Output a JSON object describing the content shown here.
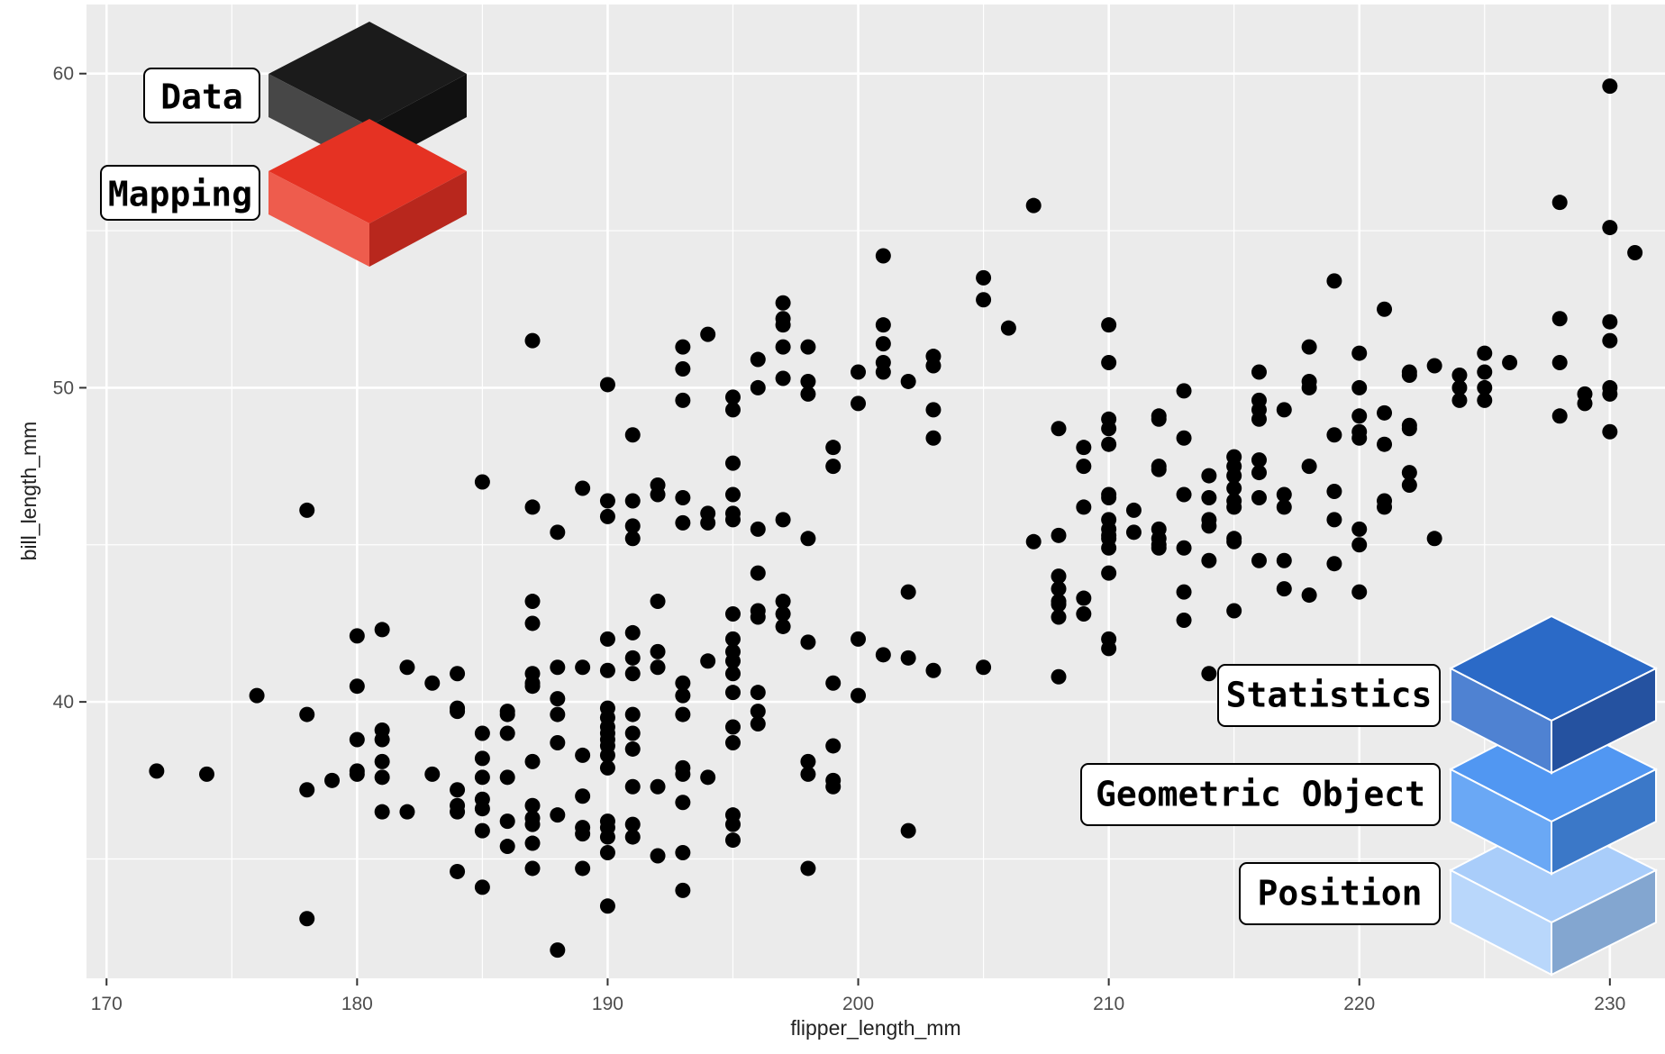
{
  "chart_data": {
    "type": "scatter",
    "xlabel": "flipper_length_mm",
    "ylabel": "bill_length_mm",
    "xlim": [
      169.2,
      232.2
    ],
    "ylim": [
      31.2,
      62.2
    ],
    "x_ticks": [
      170,
      180,
      190,
      200,
      210,
      220,
      230
    ],
    "y_ticks": [
      40,
      50,
      60
    ],
    "grid": true,
    "panel_background": "#ebebeb",
    "point_color": "#000000",
    "points": [
      [
        172,
        37.8
      ],
      [
        174,
        37.7
      ],
      [
        176,
        40.2
      ],
      [
        178,
        46.1
      ],
      [
        178,
        39.6
      ],
      [
        178,
        37.2
      ],
      [
        178,
        33.1
      ],
      [
        179,
        37.5
      ],
      [
        180,
        42.1
      ],
      [
        180,
        40.5
      ],
      [
        180,
        38.8
      ],
      [
        180,
        37.8
      ],
      [
        180,
        37.7
      ],
      [
        181,
        42.3
      ],
      [
        181,
        39.1
      ],
      [
        181,
        38.8
      ],
      [
        181,
        38.1
      ],
      [
        181,
        37.6
      ],
      [
        181,
        36.5
      ],
      [
        182,
        41.1
      ],
      [
        182,
        36.5
      ],
      [
        183,
        40.6
      ],
      [
        183,
        37.7
      ],
      [
        184,
        40.9
      ],
      [
        184,
        39.8
      ],
      [
        184,
        39.7
      ],
      [
        184,
        37.2
      ],
      [
        184,
        36.7
      ],
      [
        184,
        36.5
      ],
      [
        184,
        34.6
      ],
      [
        185,
        47.0
      ],
      [
        185,
        39.0
      ],
      [
        185,
        38.2
      ],
      [
        185,
        37.6
      ],
      [
        185,
        36.9
      ],
      [
        185,
        36.6
      ],
      [
        185,
        35.9
      ],
      [
        185,
        34.1
      ],
      [
        186,
        39.7
      ],
      [
        186,
        39.6
      ],
      [
        186,
        39.0
      ],
      [
        186,
        37.6
      ],
      [
        186,
        36.2
      ],
      [
        186,
        35.4
      ],
      [
        187,
        51.5
      ],
      [
        187,
        46.2
      ],
      [
        187,
        43.2
      ],
      [
        187,
        42.5
      ],
      [
        187,
        40.9
      ],
      [
        187,
        40.6
      ],
      [
        187,
        40.5
      ],
      [
        187,
        38.1
      ],
      [
        187,
        36.7
      ],
      [
        187,
        36.3
      ],
      [
        187,
        36.1
      ],
      [
        187,
        35.5
      ],
      [
        187,
        34.7
      ],
      [
        188,
        45.4
      ],
      [
        188,
        41.1
      ],
      [
        188,
        40.1
      ],
      [
        188,
        39.6
      ],
      [
        188,
        38.7
      ],
      [
        188,
        36.4
      ],
      [
        188,
        32.1
      ],
      [
        189,
        46.8
      ],
      [
        189,
        41.1
      ],
      [
        189,
        38.3
      ],
      [
        189,
        37.0
      ],
      [
        189,
        36.0
      ],
      [
        189,
        35.8
      ],
      [
        189,
        34.7
      ],
      [
        190,
        50.1
      ],
      [
        190,
        46.4
      ],
      [
        190,
        45.9
      ],
      [
        190,
        42.0
      ],
      [
        190,
        41.0
      ],
      [
        190,
        39.8
      ],
      [
        190,
        39.5
      ],
      [
        190,
        39.2
      ],
      [
        190,
        39.0
      ],
      [
        190,
        38.8
      ],
      [
        190,
        38.6
      ],
      [
        190,
        38.3
      ],
      [
        190,
        37.9
      ],
      [
        190,
        36.2
      ],
      [
        190,
        36.0
      ],
      [
        190,
        35.7
      ],
      [
        190,
        35.2
      ],
      [
        190,
        33.5
      ],
      [
        191,
        48.5
      ],
      [
        191,
        46.4
      ],
      [
        191,
        45.6
      ],
      [
        191,
        45.2
      ],
      [
        191,
        42.2
      ],
      [
        191,
        41.4
      ],
      [
        191,
        40.9
      ],
      [
        191,
        39.6
      ],
      [
        191,
        39.0
      ],
      [
        191,
        38.5
      ],
      [
        191,
        37.3
      ],
      [
        191,
        36.1
      ],
      [
        191,
        35.7
      ],
      [
        192,
        46.9
      ],
      [
        192,
        46.6
      ],
      [
        192,
        43.2
      ],
      [
        192,
        41.6
      ],
      [
        192,
        41.1
      ],
      [
        192,
        37.3
      ],
      [
        192,
        35.1
      ],
      [
        193,
        51.3
      ],
      [
        193,
        50.6
      ],
      [
        193,
        49.6
      ],
      [
        193,
        46.5
      ],
      [
        193,
        45.7
      ],
      [
        193,
        40.6
      ],
      [
        193,
        40.2
      ],
      [
        193,
        39.6
      ],
      [
        193,
        37.9
      ],
      [
        193,
        37.7
      ],
      [
        193,
        36.8
      ],
      [
        193,
        35.2
      ],
      [
        193,
        34.0
      ],
      [
        194,
        51.7
      ],
      [
        194,
        46.0
      ],
      [
        194,
        45.7
      ],
      [
        194,
        41.3
      ],
      [
        194,
        37.6
      ],
      [
        195,
        49.7
      ],
      [
        195,
        49.3
      ],
      [
        195,
        47.6
      ],
      [
        195,
        46.6
      ],
      [
        195,
        46.0
      ],
      [
        195,
        45.8
      ],
      [
        195,
        42.8
      ],
      [
        195,
        42.0
      ],
      [
        195,
        41.6
      ],
      [
        195,
        41.3
      ],
      [
        195,
        40.9
      ],
      [
        195,
        40.3
      ],
      [
        195,
        39.2
      ],
      [
        195,
        38.7
      ],
      [
        195,
        36.4
      ],
      [
        195,
        36.1
      ],
      [
        195,
        35.6
      ],
      [
        196,
        50.9
      ],
      [
        196,
        50.0
      ],
      [
        196,
        45.5
      ],
      [
        196,
        44.1
      ],
      [
        196,
        42.9
      ],
      [
        196,
        42.7
      ],
      [
        196,
        40.3
      ],
      [
        196,
        39.7
      ],
      [
        196,
        39.3
      ],
      [
        197,
        52.7
      ],
      [
        197,
        52.2
      ],
      [
        197,
        52.0
      ],
      [
        197,
        51.3
      ],
      [
        197,
        50.3
      ],
      [
        197,
        45.8
      ],
      [
        197,
        43.2
      ],
      [
        197,
        42.8
      ],
      [
        197,
        42.4
      ],
      [
        198,
        51.3
      ],
      [
        198,
        50.2
      ],
      [
        198,
        49.8
      ],
      [
        198,
        45.2
      ],
      [
        198,
        41.9
      ],
      [
        198,
        38.1
      ],
      [
        198,
        37.7
      ],
      [
        198,
        34.7
      ],
      [
        199,
        48.1
      ],
      [
        199,
        47.5
      ],
      [
        199,
        40.6
      ],
      [
        199,
        38.6
      ],
      [
        199,
        37.5
      ],
      [
        199,
        37.3
      ],
      [
        200,
        50.5
      ],
      [
        200,
        49.5
      ],
      [
        200,
        42.0
      ],
      [
        200,
        40.2
      ],
      [
        201,
        54.2
      ],
      [
        201,
        52.0
      ],
      [
        201,
        51.4
      ],
      [
        201,
        50.8
      ],
      [
        201,
        50.5
      ],
      [
        201,
        41.5
      ],
      [
        202,
        50.2
      ],
      [
        202,
        43.5
      ],
      [
        202,
        41.4
      ],
      [
        202,
        35.9
      ],
      [
        203,
        51.0
      ],
      [
        203,
        50.7
      ],
      [
        203,
        49.3
      ],
      [
        203,
        48.4
      ],
      [
        203,
        41.0
      ],
      [
        205,
        53.5
      ],
      [
        205,
        52.8
      ],
      [
        205,
        41.1
      ],
      [
        206,
        51.9
      ],
      [
        207,
        55.8
      ],
      [
        207,
        45.1
      ],
      [
        208,
        48.7
      ],
      [
        208,
        45.3
      ],
      [
        208,
        44.0
      ],
      [
        208,
        43.6
      ],
      [
        208,
        43.2
      ],
      [
        208,
        43.1
      ],
      [
        208,
        42.7
      ],
      [
        208,
        40.8
      ],
      [
        209,
        48.1
      ],
      [
        209,
        47.5
      ],
      [
        209,
        46.2
      ],
      [
        209,
        43.3
      ],
      [
        209,
        42.8
      ],
      [
        210,
        52.0
      ],
      [
        210,
        50.8
      ],
      [
        210,
        49.0
      ],
      [
        210,
        48.7
      ],
      [
        210,
        48.2
      ],
      [
        210,
        46.6
      ],
      [
        210,
        46.5
      ],
      [
        210,
        45.8
      ],
      [
        210,
        45.5
      ],
      [
        210,
        45.3
      ],
      [
        210,
        45.2
      ],
      [
        210,
        44.9
      ],
      [
        210,
        44.1
      ],
      [
        210,
        42.0
      ],
      [
        210,
        41.7
      ],
      [
        211,
        46.1
      ],
      [
        211,
        45.4
      ],
      [
        212,
        49.1
      ],
      [
        212,
        49.0
      ],
      [
        212,
        47.5
      ],
      [
        212,
        47.4
      ],
      [
        212,
        45.5
      ],
      [
        212,
        45.2
      ],
      [
        212,
        45.0
      ],
      [
        212,
        44.9
      ],
      [
        213,
        49.9
      ],
      [
        213,
        48.4
      ],
      [
        213,
        46.6
      ],
      [
        213,
        44.9
      ],
      [
        213,
        43.5
      ],
      [
        213,
        42.6
      ],
      [
        214,
        47.2
      ],
      [
        214,
        46.5
      ],
      [
        214,
        45.8
      ],
      [
        214,
        45.6
      ],
      [
        214,
        44.5
      ],
      [
        214,
        40.9
      ],
      [
        215,
        47.8
      ],
      [
        215,
        47.5
      ],
      [
        215,
        47.2
      ],
      [
        215,
        46.8
      ],
      [
        215,
        46.4
      ],
      [
        215,
        46.2
      ],
      [
        215,
        45.2
      ],
      [
        215,
        45.1
      ],
      [
        215,
        42.9
      ],
      [
        216,
        50.5
      ],
      [
        216,
        49.6
      ],
      [
        216,
        49.3
      ],
      [
        216,
        49.0
      ],
      [
        216,
        47.7
      ],
      [
        216,
        47.3
      ],
      [
        216,
        46.5
      ],
      [
        216,
        44.5
      ],
      [
        217,
        49.3
      ],
      [
        217,
        46.6
      ],
      [
        217,
        46.2
      ],
      [
        217,
        44.5
      ],
      [
        217,
        43.6
      ],
      [
        218,
        51.3
      ],
      [
        218,
        50.2
      ],
      [
        218,
        50.0
      ],
      [
        218,
        47.5
      ],
      [
        218,
        43.4
      ],
      [
        219,
        53.4
      ],
      [
        219,
        48.5
      ],
      [
        219,
        46.7
      ],
      [
        219,
        45.8
      ],
      [
        219,
        44.4
      ],
      [
        220,
        51.1
      ],
      [
        220,
        50.0
      ],
      [
        220,
        49.1
      ],
      [
        220,
        48.6
      ],
      [
        220,
        48.4
      ],
      [
        220,
        45.5
      ],
      [
        220,
        45.0
      ],
      [
        220,
        43.5
      ],
      [
        221,
        52.5
      ],
      [
        221,
        49.2
      ],
      [
        221,
        48.2
      ],
      [
        221,
        46.4
      ],
      [
        221,
        46.2
      ],
      [
        222,
        50.5
      ],
      [
        222,
        50.4
      ],
      [
        222,
        48.8
      ],
      [
        222,
        48.7
      ],
      [
        222,
        47.3
      ],
      [
        222,
        46.9
      ],
      [
        223,
        50.7
      ],
      [
        223,
        45.2
      ],
      [
        224,
        50.4
      ],
      [
        224,
        50.0
      ],
      [
        224,
        49.6
      ],
      [
        225,
        51.1
      ],
      [
        225,
        50.5
      ],
      [
        225,
        50.0
      ],
      [
        225,
        49.6
      ],
      [
        226,
        50.8
      ],
      [
        228,
        55.9
      ],
      [
        228,
        52.2
      ],
      [
        228,
        50.8
      ],
      [
        228,
        49.1
      ],
      [
        229,
        49.8
      ],
      [
        229,
        49.5
      ],
      [
        230,
        59.6
      ],
      [
        230,
        55.1
      ],
      [
        230,
        52.1
      ],
      [
        230,
        51.5
      ],
      [
        230,
        50.0
      ],
      [
        230,
        49.8
      ],
      [
        230,
        48.6
      ],
      [
        231,
        54.3
      ]
    ]
  },
  "layers": {
    "data": {
      "label": "Data",
      "color": "#1a1a1a"
    },
    "mapping": {
      "label": "Mapping",
      "color": "#e53223"
    },
    "statistics": {
      "label": "Statistics",
      "color": "#2b6ac7"
    },
    "geometric_object": {
      "label": "Geometric Object",
      "color": "#5197f2"
    },
    "position": {
      "label": "Position",
      "color": "#a9cdfa"
    }
  }
}
